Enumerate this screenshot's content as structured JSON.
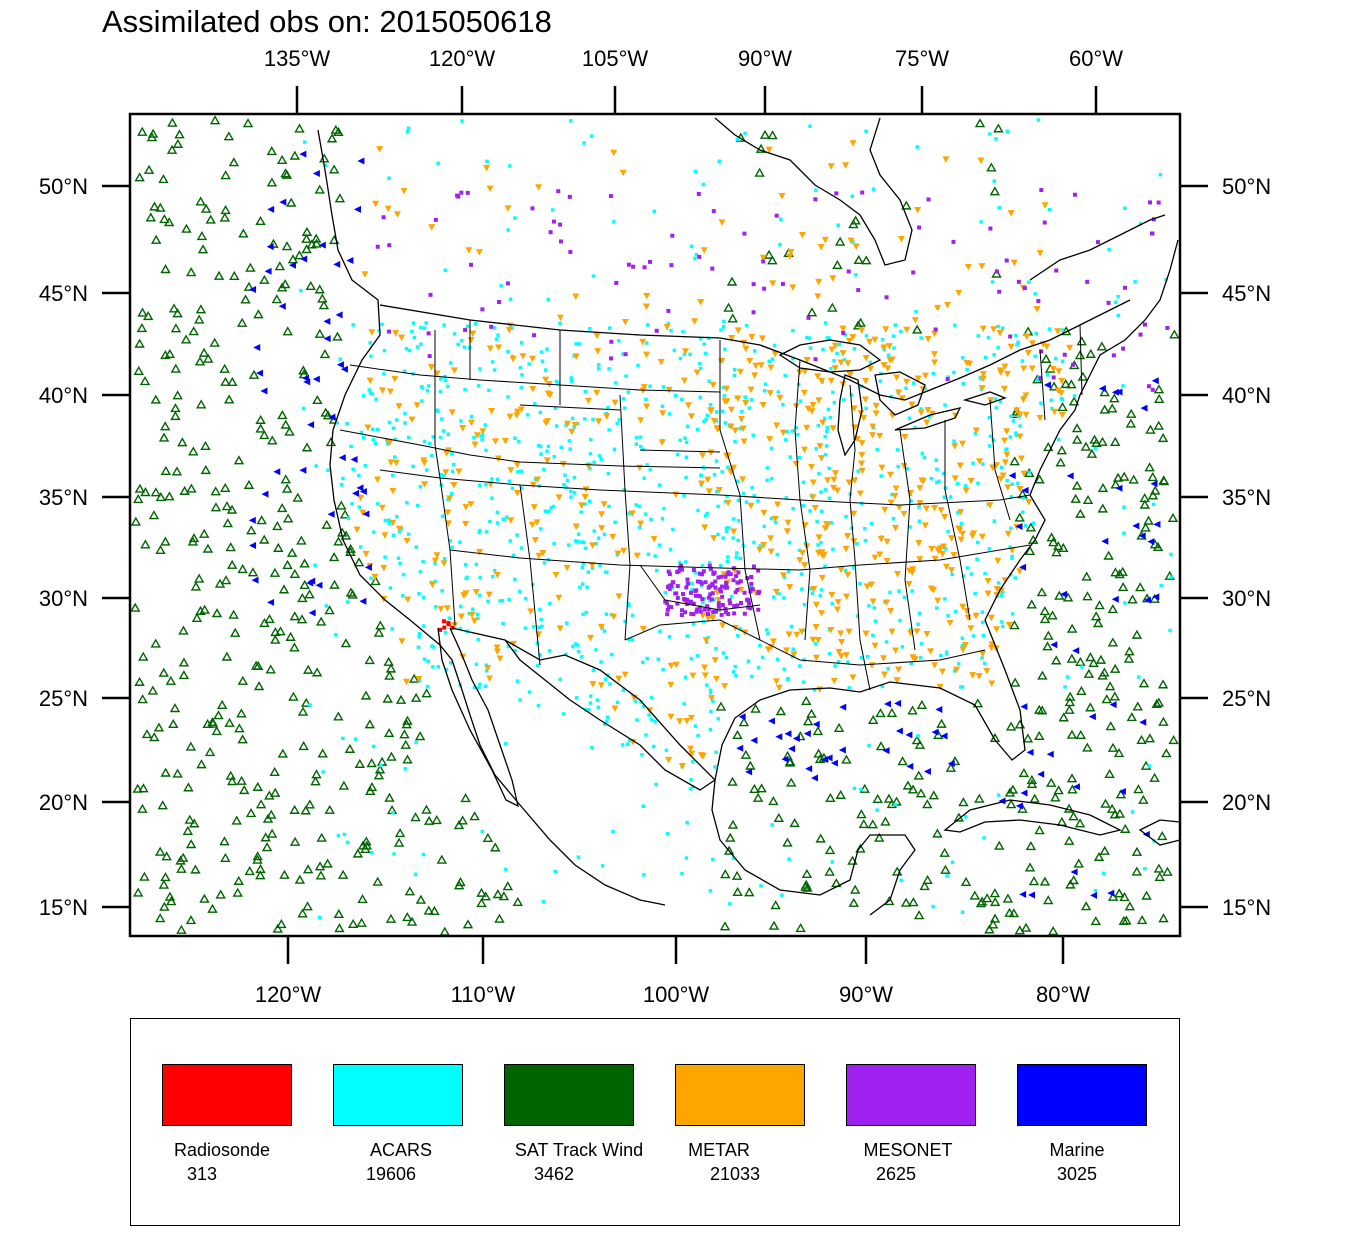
{
  "title": "Assimilated obs on: 2015050618",
  "top_axis_labels": [
    "135°W",
    "120°W",
    "105°W",
    "90°W",
    "75°W",
    "60°W"
  ],
  "bottom_axis_labels": [
    "120°W",
    "110°W",
    "100°W",
    "90°W",
    "80°W"
  ],
  "left_axis_labels": [
    "50°N",
    "45°N",
    "40°N",
    "35°N",
    "30°N",
    "25°N",
    "20°N",
    "15°N"
  ],
  "right_axis_labels": [
    "50°N",
    "45°N",
    "40°N",
    "35°N",
    "30°N",
    "25°N",
    "20°N",
    "15°N"
  ],
  "legend": [
    {
      "name": "Radiosonde",
      "count": "313",
      "color": "#ff0000"
    },
    {
      "name": "ACARS",
      "count": "19606",
      "color": "#00ffff"
    },
    {
      "name": "SAT Track Wind",
      "count": "3462",
      "color": "#006400"
    },
    {
      "name": "METAR",
      "count": "21033",
      "color": "#ffa500"
    },
    {
      "name": "MESONET",
      "count": "2625",
      "color": "#a020f0"
    },
    {
      "name": "Marine",
      "count": "3025",
      "color": "#0000ff"
    }
  ]
}
